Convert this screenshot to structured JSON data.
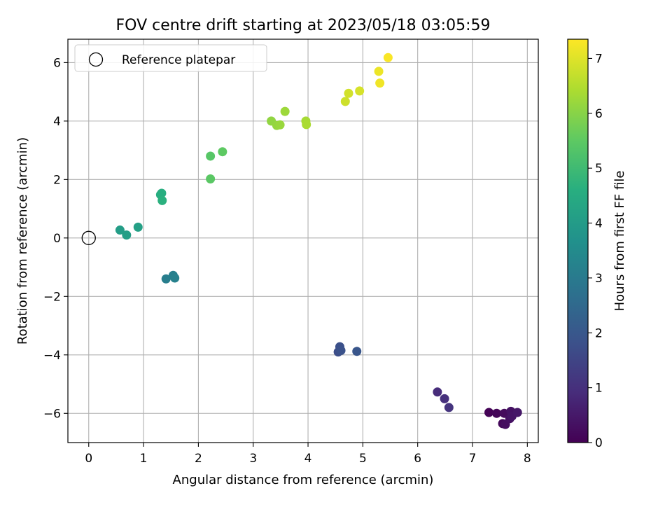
{
  "chart_data": {
    "type": "scatter",
    "title": "FOV centre drift starting at 2023/05/18 03:05:59",
    "xlabel": "Angular distance from reference (arcmin)",
    "ylabel": "Rotation from reference (arcmin)",
    "xlim": [
      -0.38,
      8.2
    ],
    "ylim": [
      -7.0,
      6.8
    ],
    "xticks": [
      0,
      1,
      2,
      3,
      4,
      5,
      6,
      7,
      8
    ],
    "xtick_labels": [
      "0",
      "1",
      "2",
      "3",
      "4",
      "5",
      "6",
      "7",
      "8"
    ],
    "yticks": [
      -6,
      -4,
      -2,
      0,
      2,
      4,
      6
    ],
    "ytick_labels": [
      "−6",
      "−4",
      "−2",
      "0",
      "2",
      "4",
      "6"
    ],
    "grid": true,
    "legend": {
      "placement": "top-left",
      "entries": [
        {
          "label": "Reference platepar",
          "marker": "open-circle"
        }
      ]
    },
    "reference_point": {
      "x": 0,
      "y": 0
    },
    "colorbar": {
      "label": "Hours from first FF file",
      "colormap": "viridis",
      "range": [
        0,
        7.35
      ],
      "ticks": [
        0,
        1,
        2,
        3,
        4,
        5,
        6,
        7
      ],
      "tick_labels": [
        "0",
        "1",
        "2",
        "3",
        "4",
        "5",
        "6",
        "7"
      ]
    },
    "points": [
      {
        "x": 7.3,
        "y": -5.97,
        "c": 0.05
      },
      {
        "x": 7.44,
        "y": -6.0,
        "c": 0.1
      },
      {
        "x": 7.55,
        "y": -6.35,
        "c": 0.15
      },
      {
        "x": 7.58,
        "y": -6.0,
        "c": 0.2
      },
      {
        "x": 7.6,
        "y": -6.38,
        "c": 0.25
      },
      {
        "x": 7.68,
        "y": -6.18,
        "c": 0.3
      },
      {
        "x": 7.7,
        "y": -5.93,
        "c": 0.35
      },
      {
        "x": 7.72,
        "y": -6.1,
        "c": 0.4
      },
      {
        "x": 7.82,
        "y": -5.97,
        "c": 0.45
      },
      {
        "x": 6.36,
        "y": -5.27,
        "c": 0.9
      },
      {
        "x": 6.49,
        "y": -5.5,
        "c": 1.0
      },
      {
        "x": 6.57,
        "y": -5.8,
        "c": 1.1
      },
      {
        "x": 4.55,
        "y": -3.9,
        "c": 1.75
      },
      {
        "x": 4.58,
        "y": -3.72,
        "c": 1.8
      },
      {
        "x": 4.6,
        "y": -3.85,
        "c": 1.85
      },
      {
        "x": 4.89,
        "y": -3.88,
        "c": 1.95
      },
      {
        "x": 1.41,
        "y": -1.4,
        "c": 3.1
      },
      {
        "x": 1.54,
        "y": -1.28,
        "c": 3.15
      },
      {
        "x": 1.57,
        "y": -1.37,
        "c": 3.2
      },
      {
        "x": 0.57,
        "y": 0.27,
        "c": 4.05
      },
      {
        "x": 0.69,
        "y": 0.1,
        "c": 4.1
      },
      {
        "x": 0.9,
        "y": 0.37,
        "c": 4.15
      },
      {
        "x": 1.31,
        "y": 1.48,
        "c": 4.55
      },
      {
        "x": 1.33,
        "y": 1.53,
        "c": 4.6
      },
      {
        "x": 1.34,
        "y": 1.28,
        "c": 4.65
      },
      {
        "x": 2.22,
        "y": 2.8,
        "c": 5.4
      },
      {
        "x": 2.22,
        "y": 2.02,
        "c": 5.45
      },
      {
        "x": 2.44,
        "y": 2.95,
        "c": 5.5
      },
      {
        "x": 3.33,
        "y": 4.0,
        "c": 6.1
      },
      {
        "x": 3.43,
        "y": 3.85,
        "c": 6.15
      },
      {
        "x": 3.49,
        "y": 3.87,
        "c": 6.2
      },
      {
        "x": 3.58,
        "y": 4.33,
        "c": 6.25
      },
      {
        "x": 3.96,
        "y": 4.0,
        "c": 6.35
      },
      {
        "x": 3.97,
        "y": 3.88,
        "c": 6.4
      },
      {
        "x": 4.68,
        "y": 4.67,
        "c": 6.8
      },
      {
        "x": 4.74,
        "y": 4.95,
        "c": 6.85
      },
      {
        "x": 4.94,
        "y": 5.03,
        "c": 6.9
      },
      {
        "x": 5.29,
        "y": 5.7,
        "c": 7.15
      },
      {
        "x": 5.31,
        "y": 5.3,
        "c": 7.2
      },
      {
        "x": 5.46,
        "y": 6.17,
        "c": 7.3
      }
    ]
  }
}
